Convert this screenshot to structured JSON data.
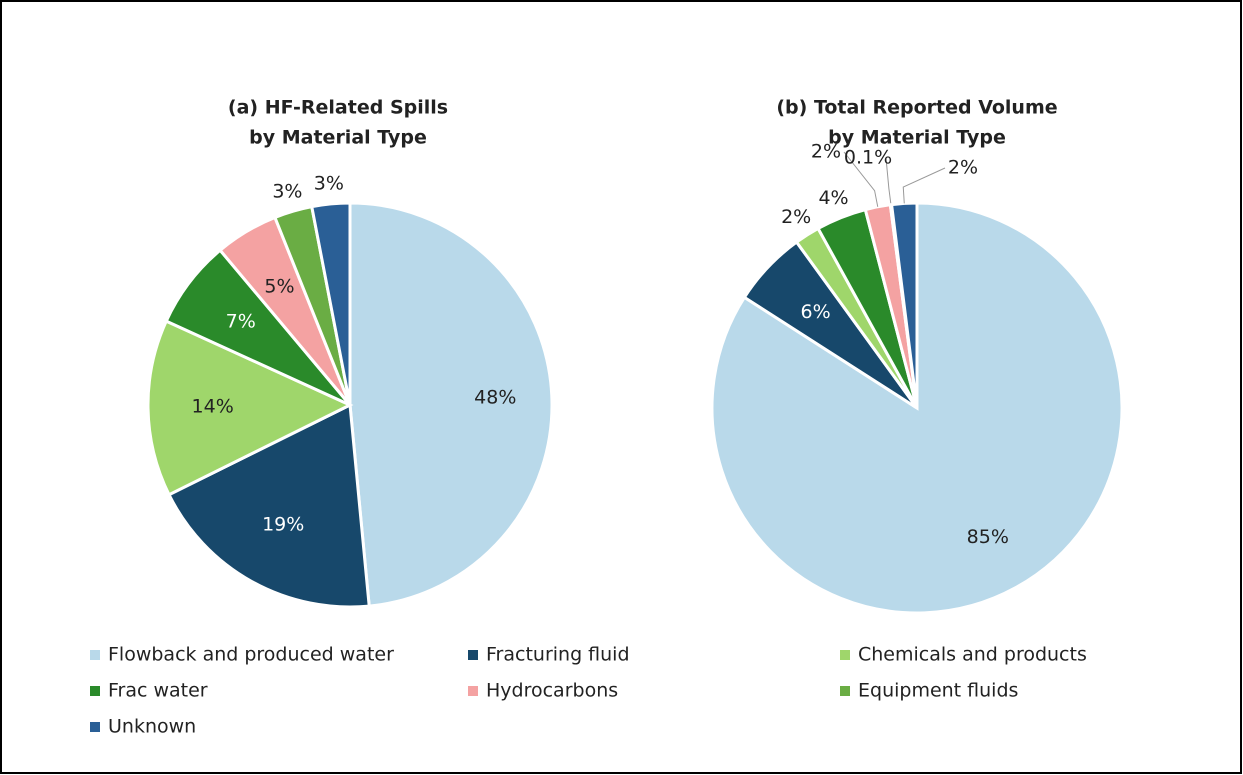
{
  "chart_data": [
    {
      "type": "pie",
      "title": [
        "(a) HF-Related Spills",
        "by Material Type"
      ],
      "values": [
        48,
        19,
        14,
        7,
        5,
        3,
        3
      ],
      "value_labels": [
        "48%",
        "19%",
        "14%",
        "7%",
        "5%",
        "3%",
        "3%"
      ]
    },
    {
      "type": "pie",
      "title": [
        "(b) Total Reported Volume",
        "by Material Type"
      ],
      "values": [
        85,
        6,
        2,
        4,
        2,
        0.1,
        2
      ],
      "value_labels": [
        "85%",
        "6%",
        "2%",
        "4%",
        "2%",
        "0.1%",
        "2%"
      ]
    }
  ],
  "legend": [
    {
      "name": "Flowback and produced water",
      "color": "#b9d9ea"
    },
    {
      "name": "Fracturing fluid",
      "color": "#17486b"
    },
    {
      "name": "Chemicals and products",
      "color": "#9fd66b"
    },
    {
      "name": "Frac water",
      "color": "#2a8a2a"
    },
    {
      "name": "Hydrocarbons",
      "color": "#f4a2a2"
    },
    {
      "name": "Equipment fluids",
      "color": "#6aad44"
    },
    {
      "name": "Unknown",
      "color": "#2a5f96"
    }
  ]
}
